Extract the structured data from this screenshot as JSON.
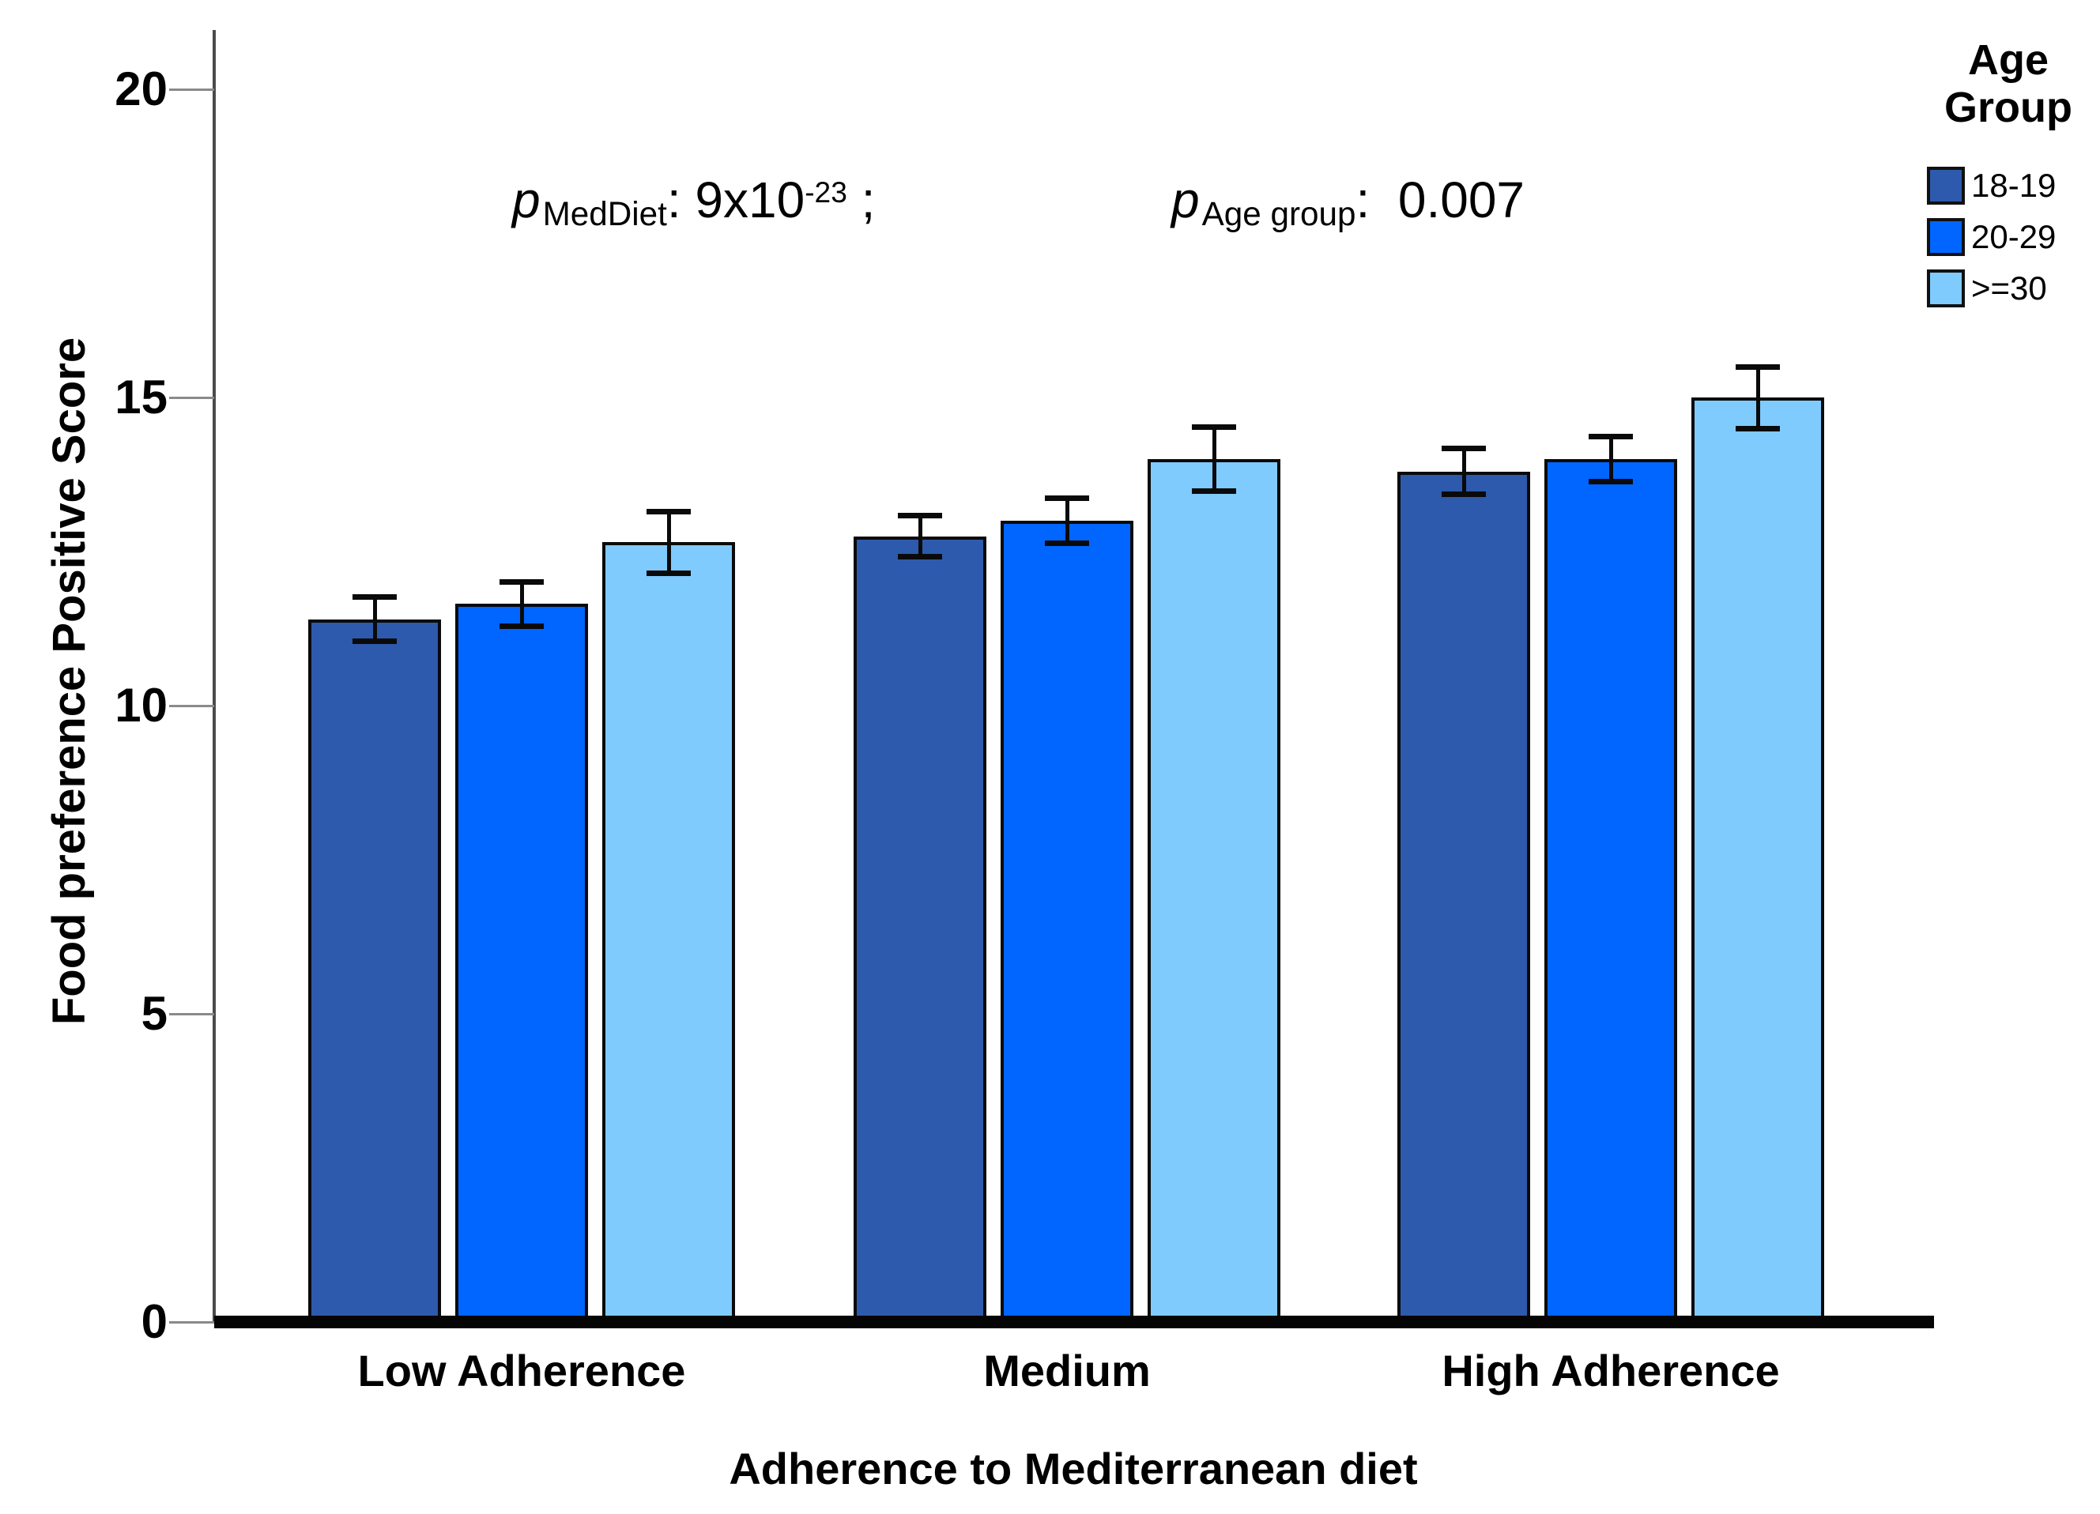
{
  "chart_data": {
    "type": "bar",
    "title": "",
    "xlabel": "Adherence to Mediterranean diet",
    "ylabel": "Food preference Positive Score",
    "categories": [
      "Low Adherence",
      "Medium",
      "High Adherence"
    ],
    "series": [
      {
        "name": "18-19",
        "color": "#2D5AAC",
        "values": [
          11.4,
          12.75,
          13.8
        ],
        "errors": [
          0.36,
          0.33,
          0.37
        ]
      },
      {
        "name": "20-29",
        "color": "#0066FF",
        "values": [
          11.65,
          13.0,
          14.0
        ],
        "errors": [
          0.36,
          0.37,
          0.37
        ]
      },
      {
        "name": ">=30",
        "color": "#7FCBFE",
        "values": [
          12.65,
          14.0,
          15.0
        ],
        "errors": [
          0.5,
          0.52,
          0.5
        ]
      }
    ],
    "y_ticks": [
      0,
      5,
      10,
      15,
      20
    ],
    "ylim": [
      0,
      21
    ],
    "grid": false,
    "legend_position": "top-right",
    "error_bars": true
  },
  "annotation": {
    "p1": {
      "var": "p",
      "sub": "MedDiet",
      "rest": ": 9x10",
      "exp": "-23",
      "tail": " ;"
    },
    "p2": {
      "var": "p",
      "sub": "Age group",
      "rest": ":  0.007"
    }
  },
  "legend": {
    "title_line1": "Age",
    "title_line2": "Group",
    "items": [
      {
        "label": "18-19",
        "color": "#2D5AAC"
      },
      {
        "label": "20-29",
        "color": "#0066FF"
      },
      {
        "label": ">=30",
        "color": "#7FCBFE"
      }
    ]
  }
}
